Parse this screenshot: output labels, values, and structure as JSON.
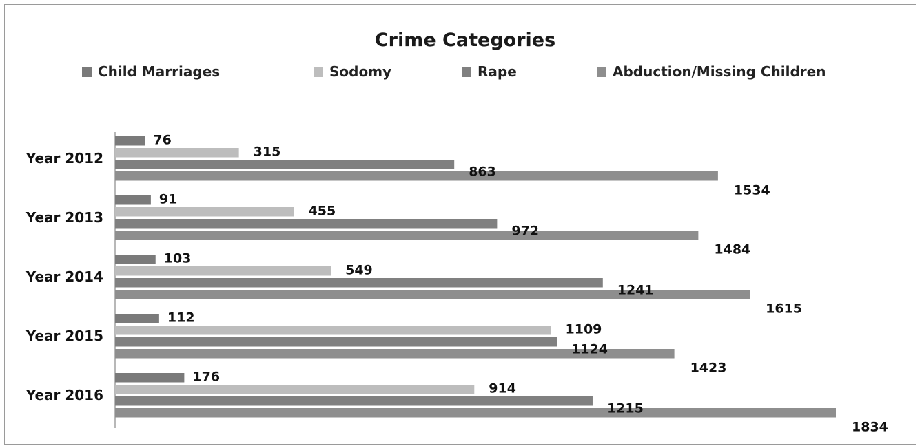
{
  "chart_data": {
    "type": "bar",
    "orientation": "horizontal",
    "title": "Crime Categories",
    "categories": [
      "Year 2012",
      "Year 2013",
      "Year 2014",
      "Year 2015",
      "Year 2016"
    ],
    "series": [
      {
        "name": "Child Marriages",
        "color": "#7a7a7a",
        "values": [
          76,
          91,
          103,
          112,
          176
        ]
      },
      {
        "name": "Sodomy",
        "color": "#bdbdbd",
        "values": [
          315,
          455,
          549,
          1109,
          914
        ]
      },
      {
        "name": "Rape",
        "color": "#808080",
        "values": [
          863,
          972,
          1241,
          1124,
          1215
        ]
      },
      {
        "name": "Abduction/Missing Children",
        "color": "#8e8e8e",
        "values": [
          1534,
          1484,
          1615,
          1423,
          1834
        ]
      }
    ],
    "xlim": [
      0,
      1834
    ],
    "grid": false,
    "legend_position": "top",
    "data_labels": true
  }
}
